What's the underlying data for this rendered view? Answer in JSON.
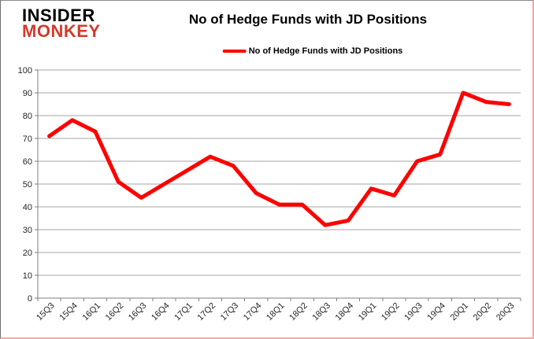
{
  "header": {
    "logo": {
      "line1": "INSIDER",
      "line2": "MONKEY"
    },
    "title": "No of Hedge Funds with JD Positions"
  },
  "legend": {
    "label": "No of Hedge Funds with JD Positions",
    "color": "#ff0000"
  },
  "chart_data": {
    "type": "line",
    "title": "No of Hedge Funds with JD Positions",
    "categories": [
      "15Q3",
      "15Q4",
      "16Q1",
      "16Q2",
      "16Q3",
      "16Q4",
      "17Q1",
      "17Q2",
      "17Q3",
      "17Q4",
      "18Q1",
      "18Q2",
      "18Q3",
      "18Q4",
      "19Q1",
      "19Q2",
      "19Q3",
      "19Q4",
      "20Q1",
      "20Q2",
      "20Q3"
    ],
    "series": [
      {
        "name": "No of Hedge Funds with JD Positions",
        "color": "#ff0000",
        "values": [
          71,
          78,
          73,
          51,
          44,
          50,
          56,
          62,
          58,
          46,
          41,
          41,
          32,
          34,
          48,
          45,
          60,
          63,
          90,
          86,
          85
        ]
      }
    ],
    "xlabel": "",
    "ylabel": "",
    "ylim": [
      0,
      100
    ],
    "ytick_step": 10,
    "grid": true,
    "legend_position": "top-center",
    "x_label_rotation": -45
  },
  "colors": {
    "series_line": "#ff0000",
    "logo_black": "#000000",
    "logo_red": "#d23b2e",
    "grid": "#a6a6a6",
    "axis": "#7f7f7f",
    "tick_text": "#262626",
    "background": "#ffffff"
  }
}
